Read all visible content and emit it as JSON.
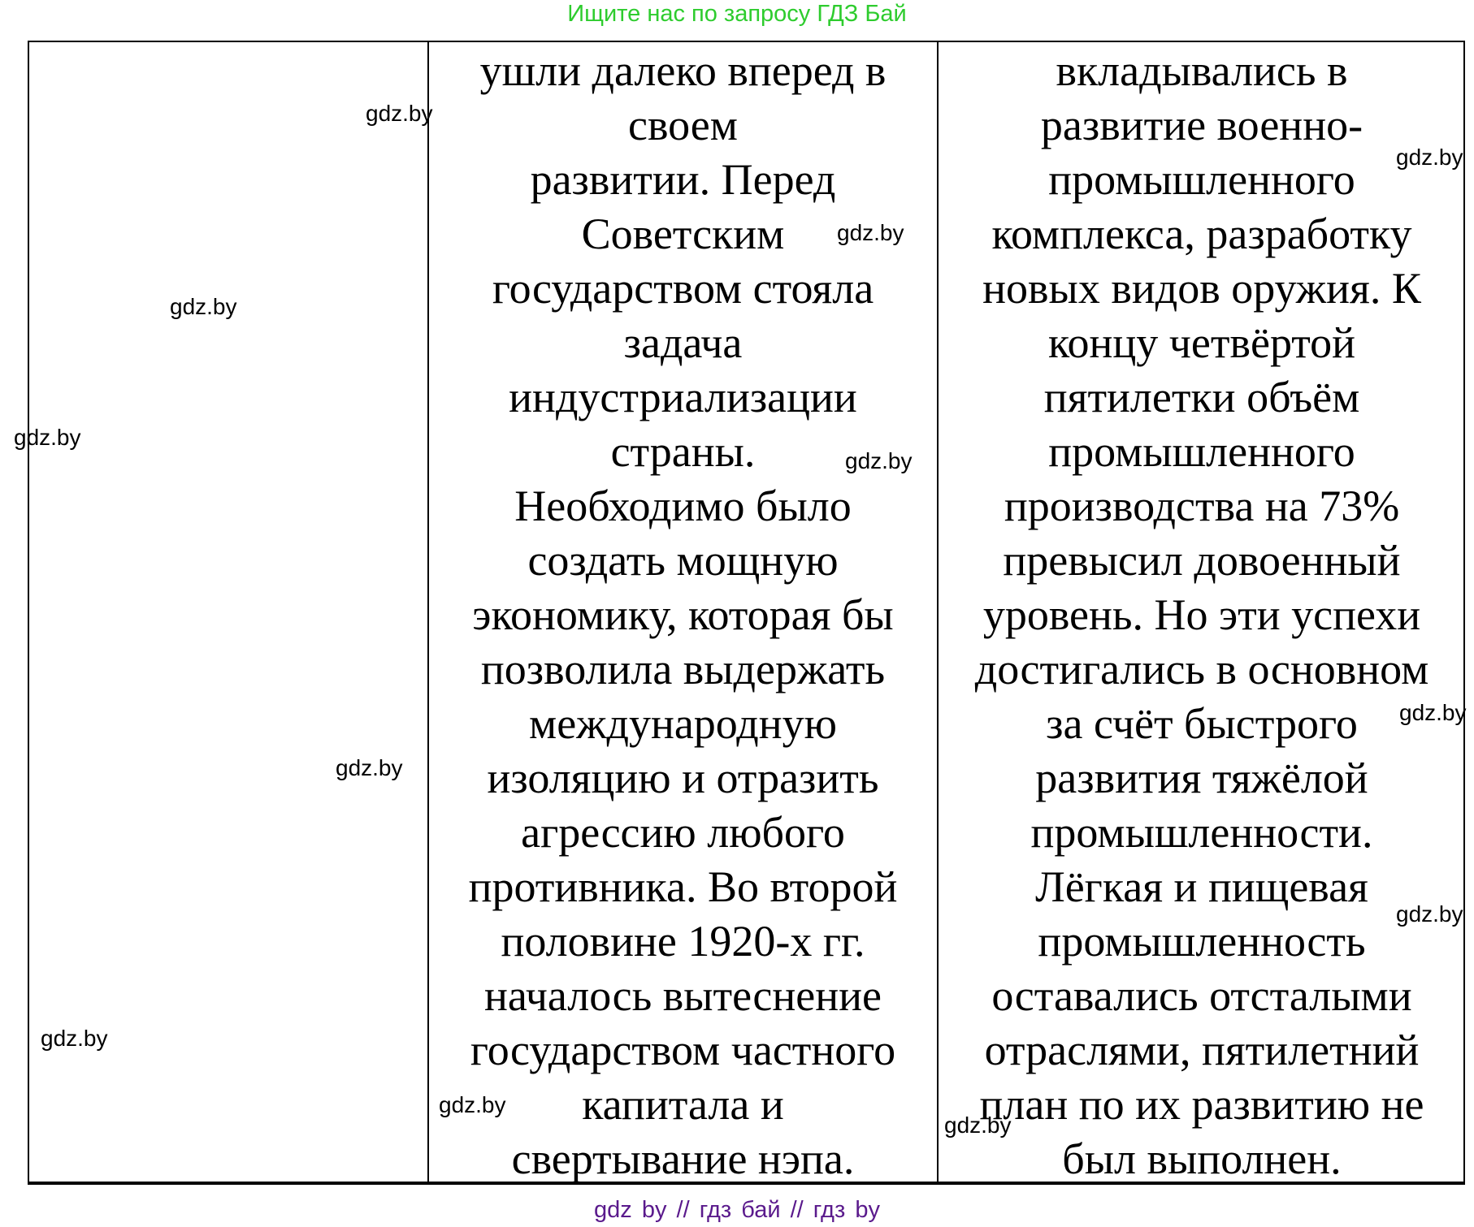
{
  "header": {
    "text": "Ищите нас по запросу ГДЗ Бай"
  },
  "footer": {
    "text": "gdz by  //  гдз бай  //  гдз by"
  },
  "table": {
    "col1_lines": [],
    "col2_lines": [
      "ушли далеко вперед в",
      "своем",
      "развитии. Перед",
      "Советским",
      "государством стояла",
      "задача",
      "индустриализации",
      "страны.",
      "Необходимо было",
      "создать мощную",
      "экономику, которая бы",
      "позволила выдержать",
      "международную",
      "изоляцию и отразить",
      "агрессию любого",
      "противника. Во второй",
      "половине 1920-х гг.",
      "началось вытеснение",
      "государством частного",
      "капитала и",
      "свертывание нэпа."
    ],
    "col3_lines": [
      "вкладывались в",
      "развитие военно-",
      "промышленного",
      "комплекса, разработку",
      "новых видов оружия. К",
      "концу четвёртой",
      "пятилетки объём",
      "промышленного",
      "производства на 73%",
      "превысил довоенный",
      "уровень. Но эти успехи",
      "достигались в основном",
      "за счёт быстрого",
      "развития тяжёлой",
      "промышленности.",
      "Лёгкая и пищевая",
      "промышленность",
      "оставались отсталыми",
      "отраслями, пятилетний",
      "план по их развитию не",
      "был выполнен."
    ]
  },
  "watermark": "gdz.by",
  "colors": {
    "header": "#2ecc2e",
    "footer": "#5a1a8c"
  }
}
